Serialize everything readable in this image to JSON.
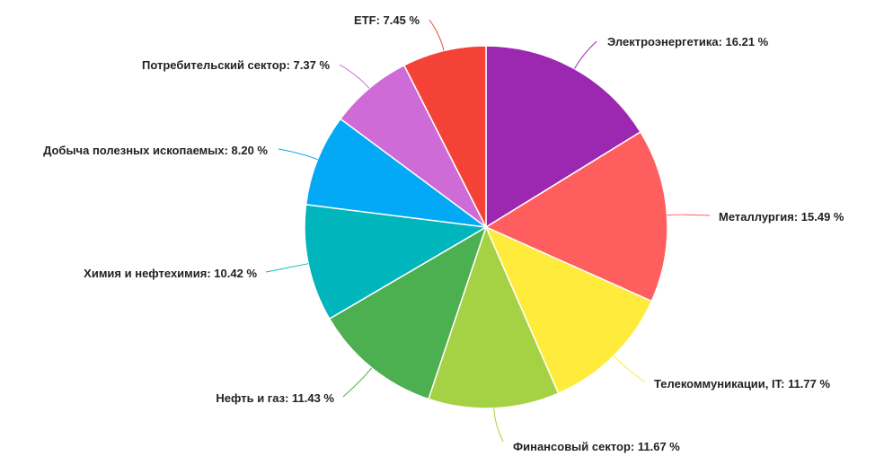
{
  "chart_data": {
    "type": "pie",
    "title": "",
    "slices": [
      {
        "label": "Электроэнергетика",
        "value": 16.21,
        "display": "Электроэнергетика: 16.21 %",
        "color": "#9C27B0"
      },
      {
        "label": "Металлургия",
        "value": 15.49,
        "display": "Металлургия: 15.49 %",
        "color": "#FF5E5E"
      },
      {
        "label": "Телекоммуникации, IT",
        "value": 11.77,
        "display": "Телекоммуникации, IT: 11.77 %",
        "color": "#FFEB3B"
      },
      {
        "label": "Финансовый сектор",
        "value": 11.67,
        "display": "Финансовый сектор: 11.67 %",
        "color": "#A5D244"
      },
      {
        "label": "Нефть и газ",
        "value": 11.43,
        "display": "Нефть и газ: 11.43 %",
        "color": "#4CAF50"
      },
      {
        "label": "Химия и нефтехимия",
        "value": 10.42,
        "display": "Химия и нефтехимия: 10.42 %",
        "color": "#00B5BB"
      },
      {
        "label": "Добыча полезных ископаемых",
        "value": 8.2,
        "display": "Добыча полезных ископаемых: 8.20 %",
        "color": "#03A9F4"
      },
      {
        "label": "Потребительский сектор",
        "value": 7.37,
        "display": "Потребительский сектор: 7.37 %",
        "color": "#CE6BD6"
      },
      {
        "label": "ETF",
        "value": 7.45,
        "display": "ETF: 7.45 %",
        "color": "#F44336"
      }
    ]
  }
}
